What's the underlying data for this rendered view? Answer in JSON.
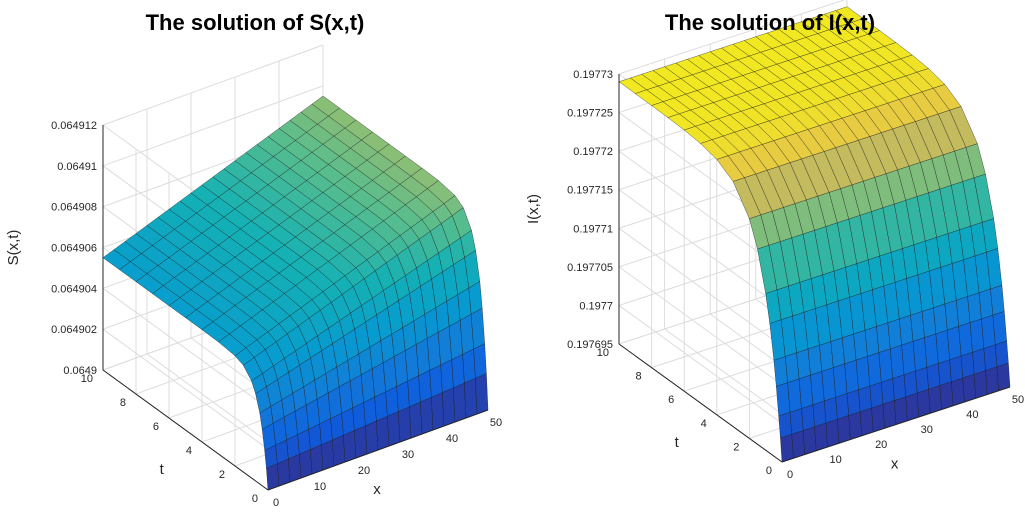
{
  "chart_data": [
    {
      "type": "surface",
      "title": "The solution of S(x,t)",
      "xlabel": "x",
      "ylabel": "t",
      "zlabel": "S(x,t)",
      "xlim": [
        0,
        50
      ],
      "ylim": [
        0,
        10
      ],
      "zlim": [
        0.0649,
        0.064912
      ],
      "xticks": [
        "0",
        "10",
        "20",
        "30",
        "40",
        "50"
      ],
      "yticks": [
        "0",
        "2",
        "4",
        "6",
        "8",
        "10"
      ],
      "zticks": [
        "0.0649",
        "0.064902",
        "0.064904",
        "0.064906",
        "0.064908",
        "0.06491",
        "0.064912"
      ],
      "colormap": "parula",
      "grid": true,
      "description_values": {
        "x": [
          0,
          5,
          10,
          15,
          20,
          25,
          30,
          35,
          40,
          45,
          50
        ],
        "t": [
          0,
          0.2,
          0.5,
          1,
          2,
          4,
          6,
          8,
          10
        ],
        "S_at_t0": 0.0649,
        "S_at_t_ge_1_x0": 0.0649055,
        "S_at_t_ge_1_x50": 0.0649095
      }
    },
    {
      "type": "surface",
      "title": "The solution of I(x,t)",
      "xlabel": "x",
      "ylabel": "t",
      "zlabel": "I(x,t)",
      "xlim": [
        0,
        50
      ],
      "ylim": [
        0,
        10
      ],
      "zlim": [
        0.197695,
        0.19773
      ],
      "xticks": [
        "0",
        "10",
        "20",
        "30",
        "40",
        "50"
      ],
      "yticks": [
        "0",
        "2",
        "4",
        "6",
        "8",
        "10"
      ],
      "zticks": [
        "0.197695",
        "0.1977",
        "0.197705",
        "0.19771",
        "0.197715",
        "0.19772",
        "0.197725",
        "0.19773"
      ],
      "colormap": "parula",
      "grid": true,
      "description_values": {
        "x": [
          0,
          5,
          10,
          15,
          20,
          25,
          30,
          35,
          40,
          45,
          50
        ],
        "t": [
          0,
          0.2,
          0.5,
          1,
          2,
          4,
          6,
          8,
          10
        ],
        "I_at_t0": 0.197695,
        "I_at_t10": 0.197729
      }
    }
  ]
}
